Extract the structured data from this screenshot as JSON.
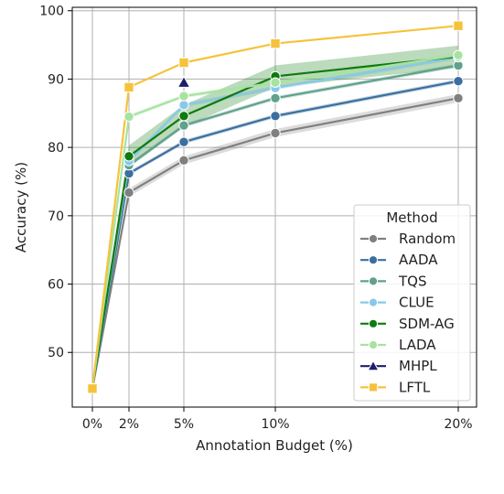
{
  "chart_data": {
    "type": "line",
    "xlabel": "Annotation Budget (%)",
    "ylabel": "Accuracy (%)",
    "x": [
      0,
      2,
      5,
      10,
      20
    ],
    "x_tick_labels": [
      "0%",
      "2%",
      "5%",
      "10%",
      "20%"
    ],
    "xlim": [
      -1.1,
      21
    ],
    "ylim": [
      42,
      100.5
    ],
    "y_ticks": [
      50,
      60,
      70,
      80,
      90,
      100
    ],
    "y_tick_labels": [
      "50",
      "60",
      "70",
      "80",
      "90",
      "100"
    ],
    "grid": true,
    "legend": {
      "title": "Method",
      "placement": "lower-right"
    },
    "series": [
      {
        "name": "Random",
        "color": "#808080",
        "marker": "circle",
        "x": [
          0,
          2,
          5,
          10,
          20
        ],
        "values": [
          44.7,
          73.4,
          78.1,
          82.1,
          87.2
        ],
        "band": 0.6
      },
      {
        "name": "AADA",
        "color": "#3b6fa0",
        "marker": "circle",
        "x": [
          0,
          2,
          5,
          10,
          20
        ],
        "values": [
          44.7,
          76.2,
          80.8,
          84.6,
          89.7
        ],
        "band": 0.3
      },
      {
        "name": "TQS",
        "color": "#5fa18d",
        "marker": "circle",
        "x": [
          0,
          2,
          5,
          10,
          20
        ],
        "values": [
          44.7,
          77.4,
          83.2,
          87.2,
          92.0
        ],
        "band": 0.3
      },
      {
        "name": "CLUE",
        "color": "#88c9ea",
        "marker": "circle",
        "x": [
          0,
          2,
          5,
          10,
          20
        ],
        "values": [
          44.7,
          78.0,
          86.2,
          88.7,
          93.2
        ],
        "band": 0.3
      },
      {
        "name": "SDM-AG",
        "color": "#0f7a0f",
        "marker": "circle",
        "x": [
          0,
          2,
          5,
          10,
          20
        ],
        "values": [
          44.7,
          78.7,
          84.6,
          90.4,
          93.3
        ],
        "band": 1.6
      },
      {
        "name": "LADA",
        "color": "#a6e3a0",
        "marker": "circle",
        "x": [
          0,
          2,
          5,
          10,
          20
        ],
        "values": [
          44.7,
          84.5,
          87.5,
          89.5,
          93.5
        ],
        "band": 0.3
      },
      {
        "name": "MHPL",
        "color": "#1d1f6b",
        "marker": "triangle",
        "x": [
          5
        ],
        "values": [
          89.5
        ],
        "band": 0
      },
      {
        "name": "LFTL",
        "color": "#f5c33b",
        "marker": "square",
        "x": [
          0,
          2,
          5,
          10,
          20
        ],
        "values": [
          44.7,
          88.8,
          92.4,
          95.2,
          97.8
        ],
        "band": 0
      }
    ]
  }
}
